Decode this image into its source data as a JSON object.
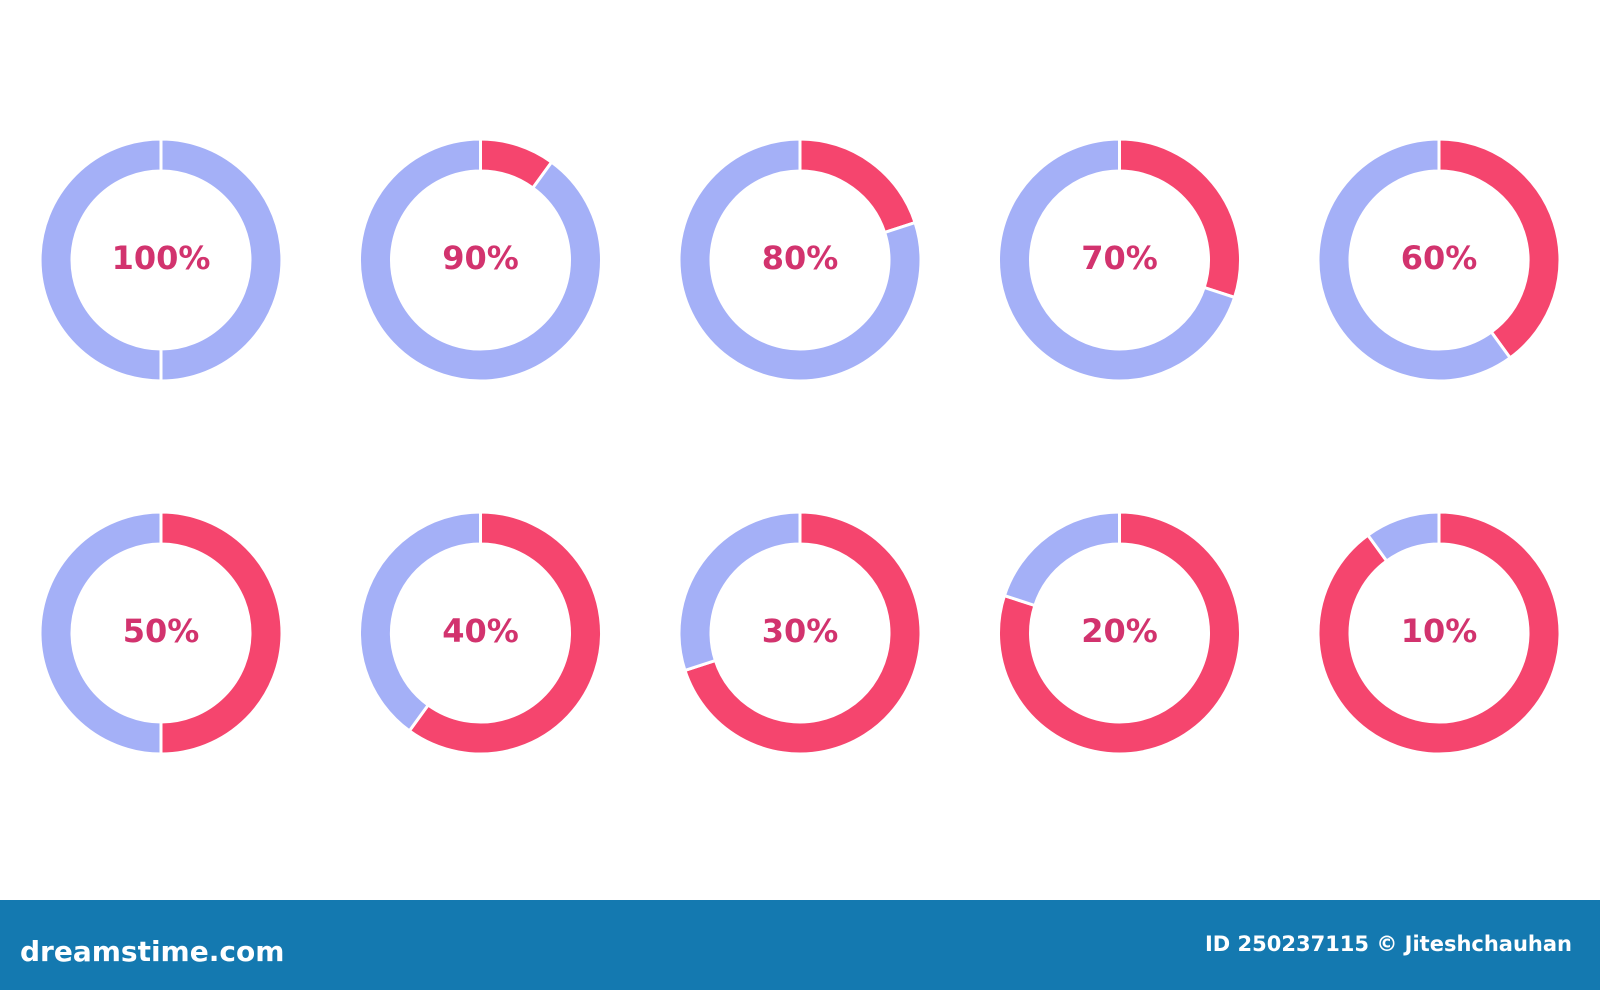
{
  "chart_data": [
    {
      "type": "donut",
      "values": [
        0,
        100
      ],
      "value_labels": [
        null,
        "100%"
      ],
      "colors": [
        "#f5456e",
        "#a4b0f7"
      ]
    },
    {
      "type": "donut",
      "values": [
        10,
        90
      ],
      "value_labels": [
        null,
        "90%"
      ],
      "colors": [
        "#f5456e",
        "#a4b0f7"
      ]
    },
    {
      "type": "donut",
      "values": [
        20,
        80
      ],
      "value_labels": [
        null,
        "80%"
      ],
      "colors": [
        "#f5456e",
        "#a4b0f7"
      ]
    },
    {
      "type": "donut",
      "values": [
        30,
        70
      ],
      "value_labels": [
        null,
        "70%"
      ],
      "colors": [
        "#f5456e",
        "#a4b0f7"
      ]
    },
    {
      "type": "donut",
      "values": [
        40,
        60
      ],
      "value_labels": [
        null,
        "60%"
      ],
      "colors": [
        "#f5456e",
        "#a4b0f7"
      ]
    },
    {
      "type": "donut",
      "values": [
        50,
        50
      ],
      "value_labels": [
        null,
        "50%"
      ],
      "colors": [
        "#f5456e",
        "#a4b0f7"
      ]
    },
    {
      "type": "donut",
      "values": [
        60,
        40
      ],
      "value_labels": [
        null,
        "40%"
      ],
      "colors": [
        "#f5456e",
        "#a4b0f7"
      ]
    },
    {
      "type": "donut",
      "values": [
        70,
        30
      ],
      "value_labels": [
        null,
        "30%"
      ],
      "colors": [
        "#f5456e",
        "#a4b0f7"
      ]
    },
    {
      "type": "donut",
      "values": [
        80,
        20
      ],
      "value_labels": [
        null,
        "20%"
      ],
      "colors": [
        "#f5456e",
        "#a4b0f7"
      ]
    },
    {
      "type": "donut",
      "values": [
        90,
        10
      ],
      "value_labels": [
        null,
        "10%"
      ],
      "colors": [
        "#f5456e",
        "#a4b0f7"
      ]
    }
  ],
  "footer": {
    "brand": "dreamstime.com",
    "credit": "ID 250237115 © Jiteshchauhan"
  }
}
